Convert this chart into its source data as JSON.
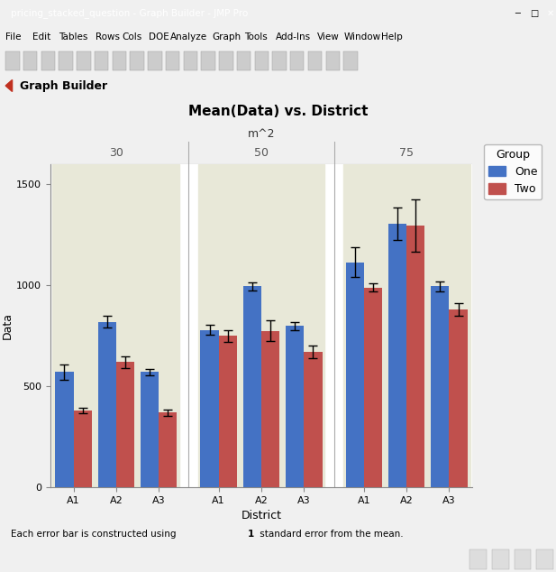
{
  "title": "Mean(Data) vs. District",
  "xlabel": "District",
  "ylabel": "Data",
  "facet_label": "m^2",
  "facet_values": [
    "30",
    "50",
    "75"
  ],
  "districts": [
    "A1",
    "A2",
    "A3"
  ],
  "groups": [
    "One",
    "Two"
  ],
  "bar_colors": {
    "One": "#4472C4",
    "Two": "#C0504D"
  },
  "means": {
    "30": {
      "A1": {
        "One": 570,
        "Two": 380
      },
      "A2": {
        "One": 820,
        "Two": 620
      },
      "A3": {
        "One": 570,
        "Two": 370
      }
    },
    "50": {
      "A1": {
        "One": 780,
        "Two": 750
      },
      "A2": {
        "One": 995,
        "Two": 775
      },
      "A3": {
        "One": 800,
        "Two": 670
      }
    },
    "75": {
      "A1": {
        "One": 1115,
        "Two": 990
      },
      "A2": {
        "One": 1305,
        "Two": 1295
      },
      "A3": {
        "One": 995,
        "Two": 880
      }
    }
  },
  "errors": {
    "30": {
      "A1": {
        "One": 40,
        "Two": 15
      },
      "A2": {
        "One": 30,
        "Two": 30
      },
      "A3": {
        "One": 15,
        "Two": 15
      }
    },
    "50": {
      "A1": {
        "One": 25,
        "Two": 30
      },
      "A2": {
        "One": 20,
        "Two": 50
      },
      "A3": {
        "One": 20,
        "Two": 30
      }
    },
    "75": {
      "A1": {
        "One": 75,
        "Two": 20
      },
      "A2": {
        "One": 80,
        "Two": 130
      },
      "A3": {
        "One": 25,
        "Two": 30
      }
    }
  },
  "ylim": [
    0,
    1600
  ],
  "yticks": [
    0,
    500,
    1000,
    1500
  ],
  "bar_width": 0.35,
  "facet_bg": "#E8E8D8",
  "facet_num_bg": "#DEDED0",
  "plot_bg": "#FFFFFF",
  "header_bg": "#D0D0C0",
  "win_bg": "#F0F0F0",
  "win_title": "pricing_stacked_question - Graph Builder - JMP Pro",
  "gb_label": "Graph Builder",
  "legend_title": "Group",
  "footer": "Each error bar is constructed using 1 standard error from the mean.",
  "title_fontsize": 11,
  "axis_fontsize": 9,
  "tick_fontsize": 8,
  "facet_fontsize": 9,
  "menu_items": [
    "File",
    "Edit",
    "Tables",
    "Rows",
    "Cols",
    "DOE",
    "Analyze",
    "Graph",
    "Tools",
    "Add-Ins",
    "View",
    "Window",
    "Help"
  ],
  "win_title_bg": "#1C3A6E",
  "win_title_color": "#FFFFFF",
  "menu_bg": "#F0F0F0",
  "toolbar_bg": "#E8E8E8",
  "gb_header_bg": "#E0E8F0",
  "gb_header_color": "#1C3A6E"
}
